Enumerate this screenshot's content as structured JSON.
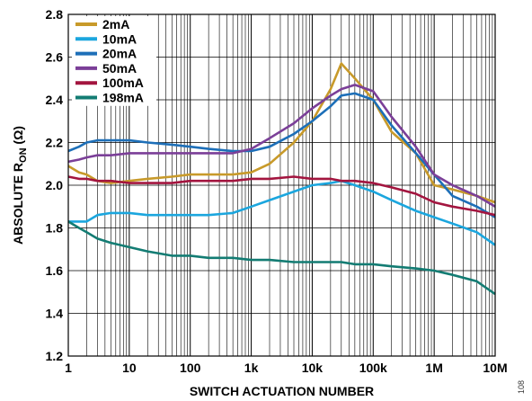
{
  "figure_id": "108",
  "chart_data": {
    "type": "line",
    "title": "",
    "xlabel": "SWITCH ACTUATION NUMBER",
    "ylabel_main": "ABSOLUTE R",
    "ylabel_sub": "ON",
    "ylabel_unit": " (Ω)",
    "x_scale": "log",
    "xlim": [
      1,
      10000000
    ],
    "ylim": [
      1.2,
      2.8
    ],
    "grid": true,
    "legend_position": "top-left",
    "x_ticks": [
      {
        "value": 1,
        "label": "1"
      },
      {
        "value": 10,
        "label": "10"
      },
      {
        "value": 100,
        "label": "100"
      },
      {
        "value": 1000,
        "label": "1k"
      },
      {
        "value": 10000,
        "label": "10k"
      },
      {
        "value": 100000,
        "label": "100k"
      },
      {
        "value": 1000000,
        "label": "1M"
      },
      {
        "value": 10000000,
        "label": "10M"
      }
    ],
    "y_ticks": [
      {
        "value": 1.2,
        "label": "1.2"
      },
      {
        "value": 1.4,
        "label": "1.4"
      },
      {
        "value": 1.6,
        "label": "1.6"
      },
      {
        "value": 1.8,
        "label": "1.8"
      },
      {
        "value": 2.0,
        "label": "2.0"
      },
      {
        "value": 2.2,
        "label": "2.2"
      },
      {
        "value": 2.4,
        "label": "2.4"
      },
      {
        "value": 2.6,
        "label": "2.6"
      },
      {
        "value": 2.8,
        "label": "2.8"
      }
    ],
    "series": [
      {
        "name": "2mA",
        "color": "#C89A2A",
        "x": [
          1,
          1.5,
          2,
          3,
          5,
          10,
          20,
          50,
          100,
          200,
          500,
          1000,
          2000,
          5000,
          10000,
          20000,
          30000,
          50000,
          100000,
          200000,
          500000,
          1000000,
          2000000,
          5000000,
          10000000
        ],
        "y": [
          2.09,
          2.06,
          2.05,
          2.02,
          2.01,
          2.02,
          2.03,
          2.04,
          2.05,
          2.05,
          2.05,
          2.06,
          2.1,
          2.2,
          2.3,
          2.45,
          2.57,
          2.5,
          2.4,
          2.25,
          2.15,
          2.0,
          1.98,
          1.95,
          1.92
        ]
      },
      {
        "name": "10mA",
        "color": "#1BA6DE",
        "x": [
          1,
          1.5,
          2,
          3,
          5,
          10,
          20,
          50,
          100,
          200,
          500,
          1000,
          2000,
          5000,
          10000,
          20000,
          30000,
          50000,
          100000,
          200000,
          500000,
          1000000,
          2000000,
          5000000,
          10000000
        ],
        "y": [
          1.83,
          1.83,
          1.83,
          1.86,
          1.87,
          1.87,
          1.86,
          1.86,
          1.86,
          1.86,
          1.87,
          1.9,
          1.93,
          1.97,
          2.0,
          2.01,
          2.02,
          2.0,
          1.97,
          1.93,
          1.88,
          1.85,
          1.82,
          1.78,
          1.72
        ]
      },
      {
        "name": "20mA",
        "color": "#1D6FB8",
        "x": [
          1,
          1.5,
          2,
          3,
          5,
          10,
          20,
          50,
          100,
          200,
          500,
          1000,
          2000,
          5000,
          10000,
          20000,
          30000,
          50000,
          100000,
          200000,
          500000,
          1000000,
          2000000,
          5000000,
          10000000
        ],
        "y": [
          2.16,
          2.18,
          2.2,
          2.21,
          2.21,
          2.21,
          2.2,
          2.19,
          2.18,
          2.17,
          2.16,
          2.16,
          2.18,
          2.24,
          2.3,
          2.37,
          2.42,
          2.43,
          2.4,
          2.28,
          2.15,
          2.05,
          1.95,
          1.9,
          1.85
        ]
      },
      {
        "name": "50mA",
        "color": "#7B3F98",
        "x": [
          1,
          1.5,
          2,
          3,
          5,
          10,
          20,
          50,
          100,
          200,
          500,
          1000,
          2000,
          5000,
          10000,
          20000,
          30000,
          50000,
          100000,
          200000,
          500000,
          1000000,
          2000000,
          5000000,
          10000000
        ],
        "y": [
          2.11,
          2.12,
          2.13,
          2.14,
          2.14,
          2.15,
          2.15,
          2.15,
          2.15,
          2.15,
          2.15,
          2.17,
          2.22,
          2.29,
          2.36,
          2.42,
          2.45,
          2.47,
          2.44,
          2.32,
          2.18,
          2.05,
          2.0,
          1.95,
          1.9
        ]
      },
      {
        "name": "100mA",
        "color": "#A3153F",
        "x": [
          1,
          1.5,
          2,
          3,
          5,
          10,
          20,
          50,
          100,
          200,
          500,
          1000,
          2000,
          5000,
          10000,
          20000,
          30000,
          50000,
          100000,
          200000,
          500000,
          1000000,
          2000000,
          5000000,
          10000000
        ],
        "y": [
          2.04,
          2.03,
          2.03,
          2.02,
          2.02,
          2.01,
          2.01,
          2.01,
          2.02,
          2.02,
          2.02,
          2.03,
          2.03,
          2.04,
          2.03,
          2.03,
          2.02,
          2.02,
          2.01,
          1.99,
          1.96,
          1.92,
          1.9,
          1.88,
          1.86
        ]
      },
      {
        "name": "198mA",
        "color": "#137C73",
        "x": [
          1,
          1.5,
          2,
          3,
          5,
          10,
          20,
          50,
          100,
          200,
          500,
          1000,
          2000,
          5000,
          10000,
          20000,
          30000,
          50000,
          100000,
          200000,
          500000,
          1000000,
          2000000,
          5000000,
          10000000
        ],
        "y": [
          1.83,
          1.8,
          1.78,
          1.75,
          1.73,
          1.71,
          1.69,
          1.67,
          1.67,
          1.66,
          1.66,
          1.65,
          1.65,
          1.64,
          1.64,
          1.64,
          1.64,
          1.63,
          1.63,
          1.62,
          1.61,
          1.6,
          1.58,
          1.55,
          1.49
        ]
      }
    ]
  }
}
